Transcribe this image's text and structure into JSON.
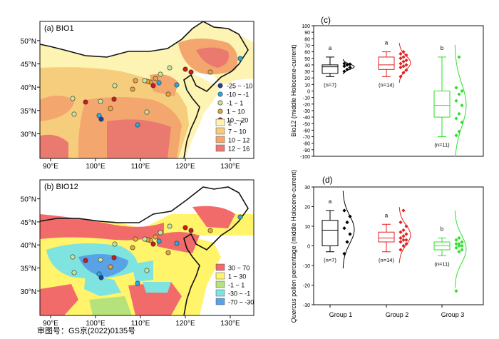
{
  "map_a": {
    "label": "(a) BIO1",
    "lat_labels": [
      "50°N",
      "45°N",
      "40°N",
      "35°N",
      "30°N"
    ],
    "lon_labels": [
      "90°E",
      "100°E",
      "110°E",
      "120°E",
      "130°E"
    ],
    "point_legend": [
      {
        "label": "-25 ~ -10",
        "color": "#1f3f9e"
      },
      {
        "label": "-10 ~ -1",
        "color": "#2aa9e0"
      },
      {
        "label": "-1 ~ 1",
        "color": "#c5e59a"
      },
      {
        "label": "1 ~ 10",
        "color": "#e8a33a"
      },
      {
        "label": "10 ~ 20",
        "color": "#cc1a1a"
      }
    ],
    "fill_legend": [
      {
        "label": "2 ~ 7",
        "color": "#fdf3b3"
      },
      {
        "label": "7 ~ 10",
        "color": "#f6cd7d"
      },
      {
        "label": "10 ~ 12",
        "color": "#f3a66e"
      },
      {
        "label": "12 ~ 16",
        "color": "#ea7a6f"
      }
    ]
  },
  "map_b": {
    "label": "(b) BIO12",
    "lat_labels": [
      "50°N",
      "45°N",
      "40°N",
      "35°N",
      "30°N"
    ],
    "lon_labels": [
      "90°E",
      "100°E",
      "110°E",
      "120°E",
      "130°E"
    ],
    "fill_legend": [
      {
        "label": "30 ~ 70",
        "color": "#f26b6b"
      },
      {
        "label": "1 ~ 30",
        "color": "#fff46a"
      },
      {
        "label": "-1 ~ 1",
        "color": "#b6e27c"
      },
      {
        "label": "-30 ~ -1",
        "color": "#7fe3e0"
      },
      {
        "label": "-70 ~ -30",
        "color": "#5aa2e6"
      }
    ]
  },
  "footer_text": "审图号：GS京(2022)0135号",
  "panel_c": {
    "label": "(c)",
    "ylabel": "Bio12 (middle Holocene-current)",
    "yticks": [
      "100",
      "90",
      "80",
      "70",
      "60",
      "50",
      "40",
      "30",
      "20",
      "10",
      "0",
      "-10",
      "-20",
      "-30",
      "-40",
      "-50",
      "-60",
      "-70",
      "-80",
      "-90",
      "-100"
    ]
  },
  "panel_d": {
    "label": "(d)",
    "ylabel_italic": "Quercus",
    "ylabel_rest": " pollen percentage (middle Holocene-current)",
    "yticks": [
      "30",
      "20",
      "10",
      "0",
      "-10",
      "-20",
      "-30"
    ]
  },
  "group_labels": [
    "Group 1",
    "Group 2",
    "Group 3"
  ],
  "chart_data": [
    {
      "type": "box",
      "title": "(c)",
      "ylabel": "Bio12 (middle Holocene-current)",
      "ylim": [
        -100,
        100
      ],
      "categories": [
        "Group 1",
        "Group 2",
        "Group 3"
      ],
      "series": [
        {
          "name": "Group 1",
          "color": "#000000",
          "letter": "a",
          "n_label": "(n=7)",
          "box": {
            "min": 22,
            "q1": 27,
            "median": 37,
            "q3": 40,
            "max": 52
          },
          "points": [
            30,
            33,
            36,
            38,
            40,
            41,
            42
          ]
        },
        {
          "name": "Group 2",
          "color": "#e32020",
          "letter": "a",
          "n_label": "(n=14)",
          "box": {
            "min": 22,
            "q1": 33,
            "median": 40,
            "q3": 52,
            "max": 60
          },
          "points": [
            22,
            28,
            32,
            36,
            38,
            40,
            42,
            45,
            47,
            50,
            52,
            55,
            57,
            60
          ]
        },
        {
          "name": "Group 3",
          "color": "#2ae12a",
          "letter": "b",
          "n_label": "(n=11)",
          "box": {
            "min": -70,
            "q1": -40,
            "median": -22,
            "q3": 0,
            "max": 52
          },
          "points": [
            -68,
            -62,
            -48,
            -42,
            -35,
            -22,
            -15,
            -5,
            0,
            5,
            52
          ]
        }
      ]
    },
    {
      "type": "box",
      "title": "(d)",
      "ylabel": "Quercus pollen percentage (middle Holocene-current)",
      "ylim": [
        -30,
        30
      ],
      "categories": [
        "Group 1",
        "Group 2",
        "Group 3"
      ],
      "series": [
        {
          "name": "Group 1",
          "color": "#000000",
          "letter": "a",
          "n_label": "(n=7)",
          "box": {
            "min": -3,
            "q1": 0,
            "median": 8,
            "q3": 13,
            "max": 18
          },
          "points": [
            -4,
            2,
            6,
            9,
            12,
            15,
            18
          ]
        },
        {
          "name": "Group 2",
          "color": "#e32020",
          "letter": "a",
          "n_label": "(n=14)",
          "box": {
            "min": -3,
            "q1": 2,
            "median": 4,
            "q3": 7,
            "max": 11
          },
          "points": [
            -2,
            0,
            1,
            2,
            3,
            3,
            4,
            5,
            6,
            7,
            8,
            10,
            12,
            18
          ]
        },
        {
          "name": "Group 3",
          "color": "#2ae12a",
          "letter": "b",
          "n_label": "(n=11)",
          "box": {
            "min": -5,
            "q1": -2,
            "median": 0,
            "q3": 2,
            "max": 4
          },
          "points": [
            -23,
            -3,
            -2,
            -1,
            0,
            0,
            1,
            1,
            2,
            3,
            4
          ]
        }
      ]
    }
  ]
}
